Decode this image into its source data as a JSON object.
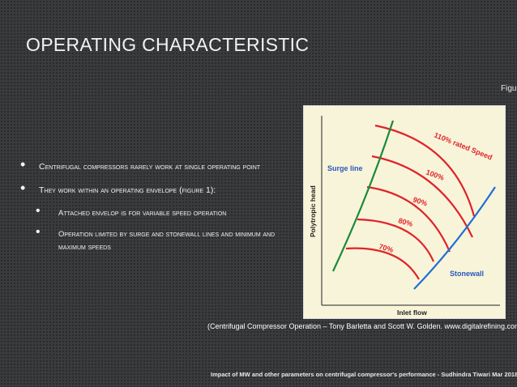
{
  "slide": {
    "title": "OPERATING CHARACTERISTIC",
    "figure_label": "Figure",
    "bullets": [
      {
        "text": "Centrifugal compressors rarely work at single operating point"
      },
      {
        "text": "They work within an operating envelope (figure 1):"
      }
    ],
    "sub_bullets": [
      {
        "text": "Attached envelop is for variable speed operation"
      },
      {
        "text": "Operation limited by surge and stonewall lines and minimum and maximum speeds"
      }
    ],
    "caption": "(Centrifugal Compressor Operation – Tony Barletta and Scott W. Golden. www.digitalrefining.com)",
    "footer": "Impact of MW and other parameters on centrifugal compressor's performance - Sudhindra Tiwari Mar 2018"
  },
  "chart_data": {
    "type": "line",
    "xlabel": "Inlet flow",
    "ylabel": "Polytropic head",
    "annotations": {
      "surge_line": "Surge line",
      "stonewall": "Stonewall"
    },
    "speed_curves": [
      "110% rated Speed",
      "100%",
      "90%",
      "80%",
      "70%"
    ],
    "colors": {
      "surge": "#1a8a3a",
      "stonewall": "#1f6fd6",
      "speed": "#e0232a",
      "annotation_text": "#2a57b8",
      "background": "#f8f4d9"
    }
  }
}
